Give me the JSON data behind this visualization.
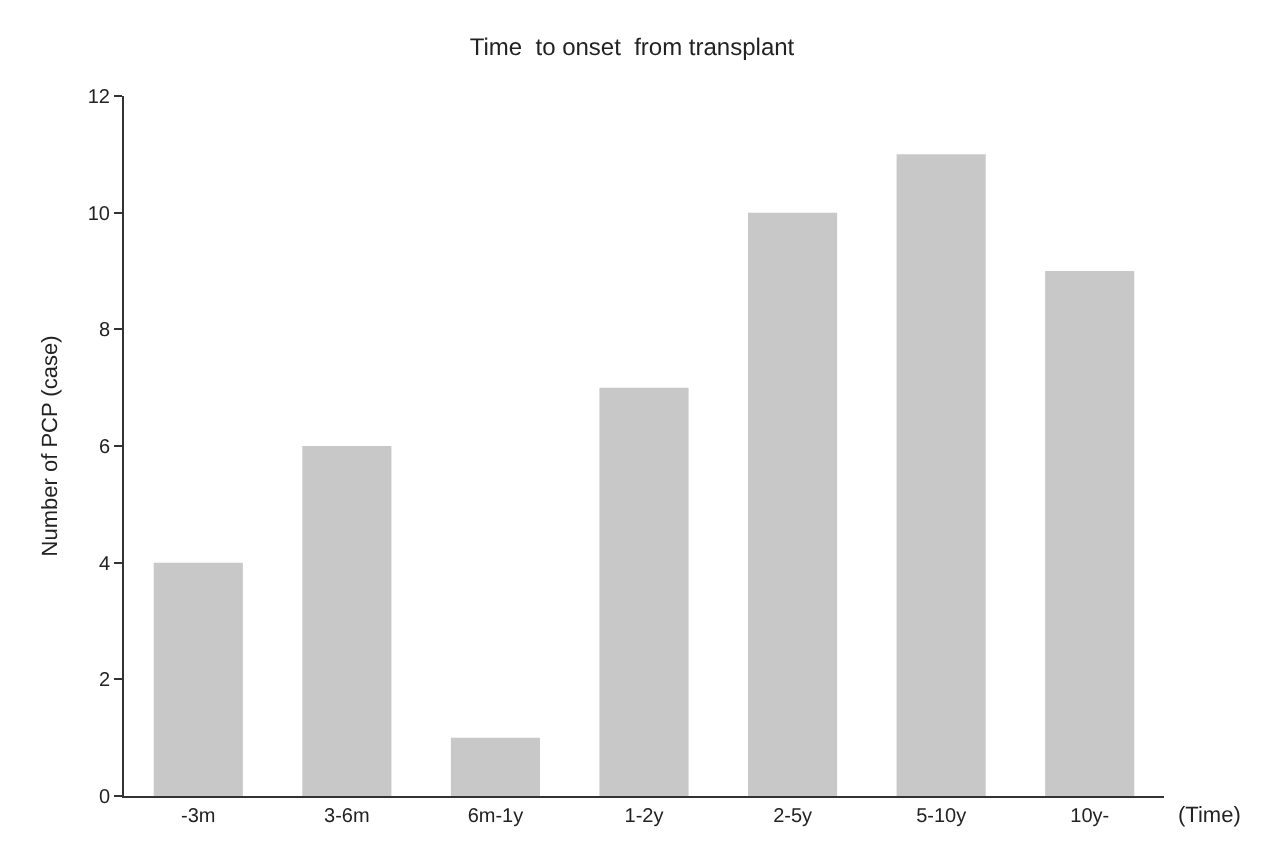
{
  "chart_data": {
    "type": "bar",
    "title": "Time  to onset  from transplant",
    "xlabel": "(Time)",
    "ylabel": "Number of PCP (case)",
    "categories": [
      "-3m",
      "3-6m",
      "6m-1y",
      "1-2y",
      "2-5y",
      "5-10y",
      "10y-"
    ],
    "values": [
      4,
      6,
      1,
      7,
      10,
      11,
      9
    ],
    "color": "#c8c8c8",
    "ylim": [
      0,
      12
    ],
    "yticks": [
      0,
      2,
      4,
      6,
      8,
      10,
      12
    ],
    "grid": false,
    "legend": false
  }
}
